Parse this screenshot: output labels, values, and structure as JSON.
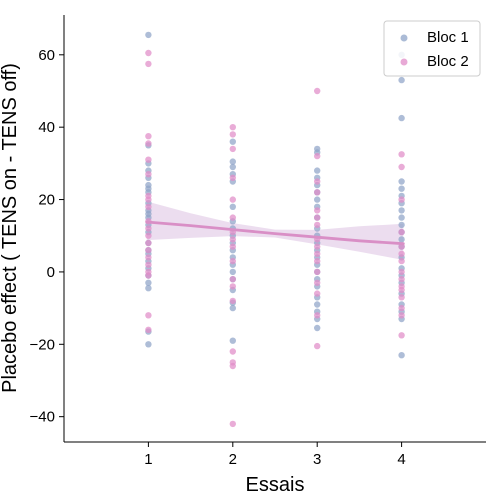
{
  "chart_data": {
    "type": "scatter",
    "title": "",
    "xlabel": "Essais",
    "ylabel": "Placebo effect ( TENS on - TENS off)",
    "xlim": [
      0,
      5
    ],
    "ylim": [
      -47,
      71
    ],
    "xticks": [
      1,
      2,
      3,
      4
    ],
    "yticks": [
      -40,
      -20,
      0,
      20,
      40,
      60
    ],
    "legend": {
      "position": "top-right",
      "entries": [
        "Bloc 1",
        "Bloc 2"
      ]
    },
    "colors": {
      "bloc1": "#8fa4c8",
      "bloc2": "#e08cc8",
      "regression": "#d98fc6",
      "band": "#e6d2ea"
    },
    "series": [
      {
        "name": "Bloc 1",
        "color": "#8fa4c8",
        "points": [
          [
            1,
            65.5
          ],
          [
            1,
            35
          ],
          [
            1,
            30
          ],
          [
            1,
            28
          ],
          [
            1,
            26
          ],
          [
            1,
            24
          ],
          [
            1,
            23
          ],
          [
            1,
            22
          ],
          [
            1,
            19
          ],
          [
            1,
            17
          ],
          [
            1,
            16
          ],
          [
            1,
            15
          ],
          [
            1,
            13
          ],
          [
            1,
            11
          ],
          [
            1,
            8
          ],
          [
            1,
            6
          ],
          [
            1,
            5
          ],
          [
            1,
            3
          ],
          [
            1,
            1
          ],
          [
            1,
            -1
          ],
          [
            1,
            -3
          ],
          [
            1,
            -4.5
          ],
          [
            1,
            -16.5
          ],
          [
            1,
            -20
          ],
          [
            2,
            36
          ],
          [
            2,
            30.5
          ],
          [
            2,
            29
          ],
          [
            2,
            27
          ],
          [
            2,
            25
          ],
          [
            2,
            18
          ],
          [
            2,
            14
          ],
          [
            2,
            12
          ],
          [
            2,
            10
          ],
          [
            2,
            8
          ],
          [
            2,
            6
          ],
          [
            2,
            4
          ],
          [
            2,
            2
          ],
          [
            2,
            0
          ],
          [
            2,
            -2
          ],
          [
            2,
            -5
          ],
          [
            2,
            -8.5
          ],
          [
            2,
            -10
          ],
          [
            2,
            -19
          ],
          [
            3,
            34
          ],
          [
            3,
            33
          ],
          [
            3,
            28
          ],
          [
            3,
            26
          ],
          [
            3,
            24
          ],
          [
            3,
            22
          ],
          [
            3,
            20
          ],
          [
            3,
            18
          ],
          [
            3,
            15
          ],
          [
            3,
            12
          ],
          [
            3,
            10
          ],
          [
            3,
            8
          ],
          [
            3,
            6
          ],
          [
            3,
            4
          ],
          [
            3,
            2
          ],
          [
            3,
            0
          ],
          [
            3,
            -2
          ],
          [
            3,
            -4
          ],
          [
            3,
            -7
          ],
          [
            3,
            -9
          ],
          [
            3,
            -11
          ],
          [
            3,
            -13
          ],
          [
            3,
            -15.5
          ],
          [
            4,
            60
          ],
          [
            4,
            53
          ],
          [
            4,
            42.5
          ],
          [
            4,
            25
          ],
          [
            4,
            23
          ],
          [
            4,
            21
          ],
          [
            4,
            19
          ],
          [
            4,
            17
          ],
          [
            4,
            15
          ],
          [
            4,
            13
          ],
          [
            4,
            11
          ],
          [
            4,
            9
          ],
          [
            4,
            7
          ],
          [
            4,
            4
          ],
          [
            4,
            1
          ],
          [
            4,
            -1
          ],
          [
            4,
            -3
          ],
          [
            4,
            -6
          ],
          [
            4,
            -9
          ],
          [
            4,
            -11
          ],
          [
            4,
            -13
          ],
          [
            4,
            -23
          ]
        ]
      },
      {
        "name": "Bloc 2",
        "color": "#e08cc8",
        "points": [
          [
            1,
            60.5
          ],
          [
            1,
            57.5
          ],
          [
            1,
            37.5
          ],
          [
            1,
            35.5
          ],
          [
            1,
            31
          ],
          [
            1,
            27
          ],
          [
            1,
            21
          ],
          [
            1,
            20
          ],
          [
            1,
            18
          ],
          [
            1,
            14
          ],
          [
            1,
            12
          ],
          [
            1,
            10
          ],
          [
            1,
            8
          ],
          [
            1,
            6
          ],
          [
            1,
            4
          ],
          [
            1,
            2
          ],
          [
            1,
            0
          ],
          [
            1,
            -1
          ],
          [
            1,
            -12
          ],
          [
            1,
            -16
          ],
          [
            2,
            40
          ],
          [
            2,
            38
          ],
          [
            2,
            34
          ],
          [
            2,
            26
          ],
          [
            2,
            20
          ],
          [
            2,
            15
          ],
          [
            2,
            11
          ],
          [
            2,
            9
          ],
          [
            2,
            7
          ],
          [
            2,
            3
          ],
          [
            2,
            -2
          ],
          [
            2,
            -4
          ],
          [
            2,
            -8
          ],
          [
            2,
            -22
          ],
          [
            2,
            -25
          ],
          [
            2,
            -26
          ],
          [
            2,
            -42
          ],
          [
            3,
            50
          ],
          [
            3,
            32
          ],
          [
            3,
            25
          ],
          [
            3,
            22
          ],
          [
            3,
            17
          ],
          [
            3,
            15
          ],
          [
            3,
            13
          ],
          [
            3,
            9
          ],
          [
            3,
            7
          ],
          [
            3,
            5
          ],
          [
            3,
            3
          ],
          [
            3,
            0
          ],
          [
            3,
            -3
          ],
          [
            3,
            -6
          ],
          [
            3,
            -12
          ],
          [
            3,
            -20.5
          ],
          [
            4,
            32.5
          ],
          [
            4,
            29
          ],
          [
            4,
            20
          ],
          [
            4,
            11
          ],
          [
            4,
            7
          ],
          [
            4,
            5
          ],
          [
            4,
            3
          ],
          [
            4,
            0
          ],
          [
            4,
            -2
          ],
          [
            4,
            -4
          ],
          [
            4,
            -5
          ],
          [
            4,
            -7
          ],
          [
            4,
            -10
          ],
          [
            4,
            -12
          ],
          [
            4,
            -17.5
          ]
        ]
      }
    ],
    "regression": {
      "x": [
        0.98,
        1.5,
        2,
        2.5,
        3,
        3.5,
        4.02
      ],
      "y": [
        13.8,
        12.8,
        11.7,
        10.6,
        9.6,
        8.6,
        7.8
      ],
      "ci_lower": [
        8.8,
        9.4,
        9.9,
        9.5,
        7.6,
        5.6,
        3.3
      ],
      "ci_upper": [
        19.5,
        16.2,
        13.5,
        11.7,
        11.6,
        12.6,
        13.3
      ]
    }
  }
}
